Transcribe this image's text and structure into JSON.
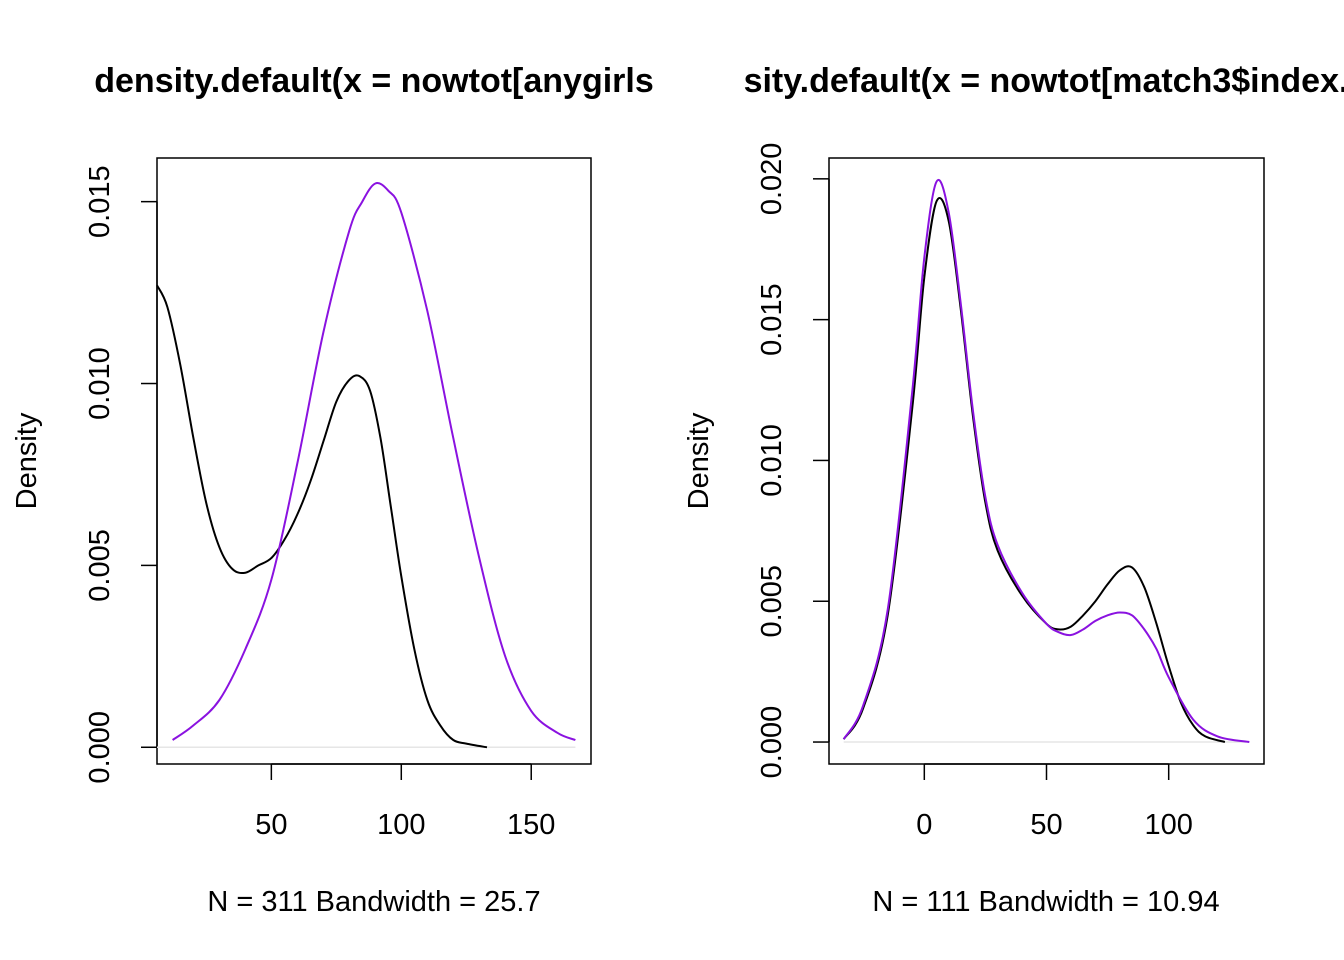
{
  "chart_data": [
    {
      "type": "line",
      "title": "density.default(x = nowtot[anygirls",
      "xlabel": "N = 311   Bandwidth = 25.7",
      "ylabel": "Density",
      "xlim": [
        6,
        173
      ],
      "ylim": [
        -0.00046,
        0.0162
      ],
      "xticks": [
        50,
        100,
        150
      ],
      "xtick_labels": [
        "50",
        "100",
        "150"
      ],
      "yticks": [
        0.0,
        0.005,
        0.01,
        0.015
      ],
      "ytick_labels": [
        "0.000",
        "0.005",
        "0.010",
        "0.015"
      ],
      "grid": false,
      "series": [
        {
          "color": "#000000",
          "x": [
            6,
            10,
            15,
            20,
            25,
            30,
            35,
            40,
            45,
            50,
            55,
            60,
            65,
            70,
            75,
            80,
            84,
            88,
            92,
            96,
            100,
            105,
            110,
            115,
            120,
            125,
            133
          ],
          "y": [
            0.0127,
            0.0121,
            0.0105,
            0.0085,
            0.0067,
            0.0055,
            0.0049,
            0.0048,
            0.005,
            0.0052,
            0.0057,
            0.0064,
            0.0073,
            0.0084,
            0.0095,
            0.0101,
            0.0102,
            0.0098,
            0.0085,
            0.0066,
            0.0047,
            0.0027,
            0.0013,
            0.0006,
            0.0002,
            0.0001,
            0.0
          ]
        },
        {
          "color": "#8a12e0",
          "x": [
            12,
            20,
            30,
            40,
            50,
            60,
            70,
            80,
            85,
            90,
            95,
            100,
            110,
            120,
            130,
            140,
            150,
            160,
            167
          ],
          "y": [
            0.0002,
            0.0006,
            0.0013,
            0.0027,
            0.0046,
            0.0078,
            0.0114,
            0.0142,
            0.015,
            0.0155,
            0.0153,
            0.0147,
            0.012,
            0.0085,
            0.0052,
            0.0025,
            0.001,
            0.0004,
            0.0002
          ]
        }
      ]
    },
    {
      "type": "line",
      "title": "sity.default(x = nowtot[match3$index.",
      "xlabel": "N = 111   Bandwidth = 10.94",
      "ylabel": "Density",
      "xlim": [
        -39,
        139
      ],
      "ylim": [
        -0.00078,
        0.02074
      ],
      "xticks": [
        0,
        50,
        100
      ],
      "xtick_labels": [
        "0",
        "50",
        "100"
      ],
      "yticks": [
        0.0,
        0.005,
        0.01,
        0.015,
        0.02
      ],
      "ytick_labels": [
        "0.000",
        "0.005",
        "0.010",
        "0.015",
        "0.020"
      ],
      "grid": false,
      "series": [
        {
          "color": "#000000",
          "x": [
            -33,
            -25,
            -15,
            -5,
            0,
            5,
            10,
            15,
            20,
            25,
            30,
            40,
            50,
            55,
            60,
            65,
            70,
            75,
            80,
            85,
            90,
            95,
            100,
            105,
            110,
            115,
            123
          ],
          "y": [
            0.0001,
            0.0012,
            0.0045,
            0.0118,
            0.0165,
            0.0192,
            0.0185,
            0.0153,
            0.0115,
            0.0085,
            0.0068,
            0.0052,
            0.0042,
            0.004,
            0.0041,
            0.0045,
            0.005,
            0.0056,
            0.0061,
            0.0062,
            0.0055,
            0.0042,
            0.0027,
            0.0014,
            0.0006,
            0.0002,
            0.0
          ]
        },
        {
          "color": "#8a12e0",
          "x": [
            -33,
            -25,
            -15,
            -5,
            0,
            5,
            10,
            15,
            20,
            25,
            30,
            40,
            50,
            55,
            60,
            65,
            70,
            75,
            80,
            85,
            90,
            95,
            100,
            110,
            120,
            133
          ],
          "y": [
            0.0001,
            0.0013,
            0.0047,
            0.0124,
            0.0172,
            0.0199,
            0.0188,
            0.0155,
            0.0117,
            0.0087,
            0.007,
            0.0053,
            0.0042,
            0.0039,
            0.0038,
            0.004,
            0.0043,
            0.0045,
            0.0046,
            0.0045,
            0.004,
            0.0033,
            0.0023,
            0.0008,
            0.0002,
            0.0
          ]
        }
      ]
    }
  ]
}
